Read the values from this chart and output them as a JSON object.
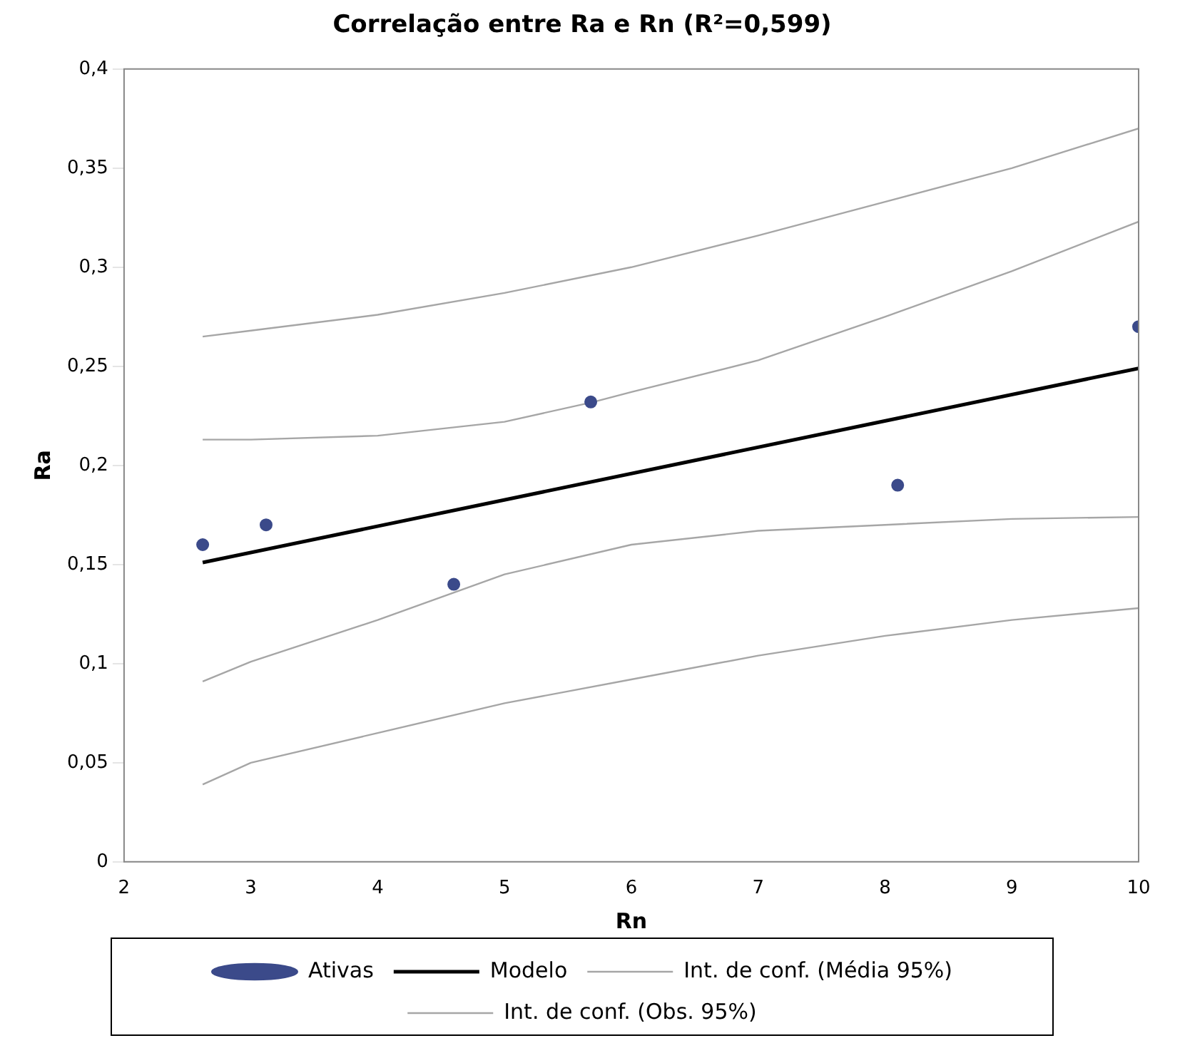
{
  "chart_data": {
    "type": "scatter",
    "title": "Correlação entre Ra e Rn (R²=0,599)",
    "xlabel": "Rn",
    "ylabel": "Ra",
    "xlim": [
      2,
      10
    ],
    "xticks": [
      2,
      3,
      4,
      5,
      6,
      7,
      8,
      9,
      10
    ],
    "ylim": [
      0,
      0.4
    ],
    "yticks": [
      {
        "value": 0,
        "label": "0"
      },
      {
        "value": 0.05,
        "label": "0,05"
      },
      {
        "value": 0.1,
        "label": "0,1"
      },
      {
        "value": 0.15,
        "label": "0,15"
      },
      {
        "value": 0.2,
        "label": "0,2"
      },
      {
        "value": 0.25,
        "label": "0,25"
      },
      {
        "value": 0.3,
        "label": "0,3"
      },
      {
        "value": 0.35,
        "label": "0,35"
      },
      {
        "value": 0.4,
        "label": "0,4"
      }
    ],
    "grid": false,
    "legend": "bottom",
    "series": [
      {
        "name": "Ativas",
        "marker": "circle",
        "color": "#3b4a8a",
        "x": [
          2.62,
          3.12,
          4.6,
          5.68,
          8.1,
          10
        ],
        "values": [
          0.16,
          0.17,
          0.14,
          0.232,
          0.19,
          0.27
        ]
      },
      {
        "name": "Modelo",
        "type": "line",
        "marker": "none",
        "color": "#000000",
        "x": [
          2.62,
          10
        ],
        "values": [
          0.151,
          0.249
        ]
      },
      {
        "name": "Int. de conf. (Média 95%)",
        "type": "line",
        "marker": "none",
        "color": "#a6a6a6",
        "x": [
          2.62,
          3,
          4,
          5,
          5.7,
          6,
          7,
          8,
          9,
          10
        ],
        "values": [
          0.213,
          0.213,
          0.215,
          0.222,
          0.232,
          0.237,
          0.253,
          0.275,
          0.298,
          0.323
        ]
      },
      {
        "type": "line",
        "marker": "none",
        "color": "#a6a6a6",
        "x": [
          2.62,
          3,
          4,
          5,
          6,
          7,
          8,
          9,
          10
        ],
        "values": [
          0.091,
          0.101,
          0.122,
          0.145,
          0.16,
          0.167,
          0.17,
          0.173,
          0.174
        ]
      },
      {
        "name": "Int. de conf. (Obs. 95%)",
        "type": "line",
        "marker": "none",
        "color": "#a6a6a6",
        "x": [
          2.62,
          3,
          4,
          5,
          6,
          7,
          8,
          9,
          10
        ],
        "values": [
          0.265,
          0.268,
          0.276,
          0.287,
          0.3,
          0.316,
          0.333,
          0.35,
          0.37
        ]
      },
      {
        "type": "line",
        "marker": "none",
        "color": "#a6a6a6",
        "x": [
          2.62,
          3,
          4,
          5,
          6,
          7,
          8,
          9,
          10
        ],
        "values": [
          0.039,
          0.05,
          0.065,
          0.08,
          0.092,
          0.104,
          0.114,
          0.122,
          0.128
        ]
      }
    ]
  }
}
